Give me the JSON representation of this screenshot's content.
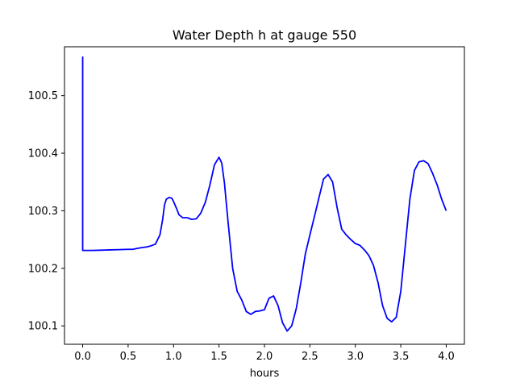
{
  "chart_data": {
    "type": "line",
    "title": "Water Depth h at gauge 550",
    "xlabel": "hours",
    "ylabel": "",
    "xlim": [
      -0.2,
      4.2
    ],
    "ylim": [
      100.068,
      100.585
    ],
    "xticks": [
      0.0,
      0.5,
      1.0,
      1.5,
      2.0,
      2.5,
      3.0,
      3.5,
      4.0
    ],
    "xtick_labels": [
      "0.0",
      "0.5",
      "1.0",
      "1.5",
      "2.0",
      "2.5",
      "3.0",
      "3.5",
      "4.0"
    ],
    "yticks": [
      100.1,
      100.2,
      100.3,
      100.4,
      100.5
    ],
    "ytick_labels": [
      "100.1",
      "100.2",
      "100.3",
      "100.4",
      "100.5"
    ],
    "grid": false,
    "series": [
      {
        "color": "#0000ff",
        "x": [
          0.0,
          0.0,
          0.0,
          0.1,
          0.2,
          0.3,
          0.4,
          0.5,
          0.55,
          0.6,
          0.65,
          0.7,
          0.75,
          0.8,
          0.85,
          0.88,
          0.9,
          0.92,
          0.95,
          0.98,
          1.0,
          1.03,
          1.06,
          1.1,
          1.15,
          1.2,
          1.25,
          1.3,
          1.35,
          1.4,
          1.45,
          1.5,
          1.53,
          1.56,
          1.6,
          1.65,
          1.7,
          1.75,
          1.8,
          1.85,
          1.9,
          1.95,
          2.0,
          2.05,
          2.1,
          2.15,
          2.2,
          2.25,
          2.3,
          2.35,
          2.4,
          2.45,
          2.5,
          2.55,
          2.6,
          2.65,
          2.7,
          2.75,
          2.8,
          2.85,
          2.9,
          2.95,
          3.0,
          3.05,
          3.1,
          3.15,
          3.2,
          3.25,
          3.3,
          3.35,
          3.4,
          3.45,
          3.5,
          3.55,
          3.6,
          3.65,
          3.7,
          3.75,
          3.8,
          3.85,
          3.9,
          3.95,
          4.0
        ],
        "y": [
          100.568,
          100.568,
          100.231,
          100.231,
          100.2315,
          100.232,
          100.2325,
          100.233,
          100.233,
          100.2345,
          100.236,
          100.237,
          100.239,
          100.242,
          100.258,
          100.285,
          100.31,
          100.32,
          100.323,
          100.322,
          100.316,
          100.305,
          100.293,
          100.288,
          100.288,
          100.285,
          100.286,
          100.296,
          100.315,
          100.345,
          100.38,
          100.393,
          100.383,
          100.348,
          100.28,
          100.2,
          100.16,
          100.145,
          100.125,
          100.12,
          100.125,
          100.126,
          100.128,
          100.148,
          100.152,
          100.135,
          100.105,
          100.091,
          100.1,
          100.13,
          100.175,
          100.225,
          100.258,
          100.29,
          100.323,
          100.355,
          100.363,
          100.35,
          100.305,
          100.268,
          100.258,
          100.25,
          100.243,
          100.24,
          100.232,
          100.222,
          100.205,
          100.175,
          100.135,
          100.113,
          100.107,
          100.115,
          100.16,
          100.24,
          100.32,
          100.37,
          100.385,
          100.387,
          100.382,
          100.365,
          100.345,
          100.32,
          100.3
        ]
      }
    ]
  }
}
